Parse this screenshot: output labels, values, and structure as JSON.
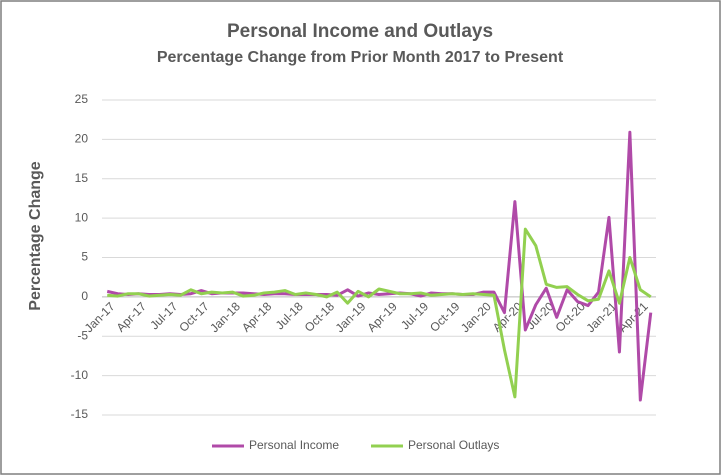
{
  "chart_data": {
    "type": "line",
    "title": "Personal Income and Outlays",
    "subtitle": "Percentage Change from Prior Month 2017 to Present",
    "y_label": "Percentage Change",
    "categories": [
      "Jan-17",
      null,
      null,
      "Apr-17",
      null,
      null,
      "Jul-17",
      null,
      null,
      "Oct-17",
      null,
      null,
      "Jan-18",
      null,
      null,
      "Apr-18",
      null,
      null,
      "Jul-18",
      null,
      null,
      "Oct-18",
      null,
      null,
      "Jan-19",
      null,
      null,
      "Apr-19",
      null,
      null,
      "Jul-19",
      null,
      null,
      "Oct-19",
      null,
      null,
      "Jan-20",
      null,
      null,
      "Apr-20",
      null,
      null,
      "Jul-20",
      null,
      null,
      "Oct-20",
      null,
      null,
      "Jan-21",
      null,
      null,
      "Apr-21",
      null
    ],
    "series": [
      {
        "name": "Personal Income",
        "color": "#b04aa8",
        "values": [
          0.7,
          0.4,
          0.3,
          0.4,
          0.3,
          0.3,
          0.4,
          0.3,
          0.4,
          0.8,
          0.4,
          0.5,
          0.5,
          0.5,
          0.4,
          0.3,
          0.4,
          0.4,
          0.3,
          0.3,
          0.3,
          0.3,
          0.2,
          0.9,
          0.1,
          0.5,
          0.3,
          0.4,
          0.5,
          0.4,
          0.1,
          0.5,
          0.4,
          0.4,
          0.3,
          0.3,
          0.6,
          0.6,
          -2.0,
          12.1,
          -4.2,
          -1.0,
          1.1,
          -2.6,
          0.9,
          -0.6,
          -1.1,
          0.6,
          10.1,
          -7.0,
          20.9,
          -13.1,
          -2.0
        ]
      },
      {
        "name": "Personal Outlays",
        "color": "#92d050",
        "values": [
          0.2,
          0.1,
          0.4,
          0.4,
          0.1,
          0.2,
          0.3,
          0.2,
          0.9,
          0.4,
          0.6,
          0.5,
          0.6,
          0.1,
          0.2,
          0.5,
          0.6,
          0.8,
          0.3,
          0.5,
          0.3,
          0.0,
          0.6,
          -0.8,
          0.7,
          0.0,
          1.0,
          0.7,
          0.4,
          0.4,
          0.5,
          0.2,
          0.3,
          0.4,
          0.3,
          0.4,
          0.3,
          0.2,
          -6.7,
          -12.7,
          8.6,
          6.5,
          1.6,
          1.2,
          1.3,
          0.3,
          -0.5,
          -0.3,
          3.3,
          -0.8,
          5.0,
          0.9,
          0.0
        ]
      }
    ],
    "ylim": [
      -15,
      25
    ],
    "yticks": [
      -15,
      -10,
      -5,
      0,
      5,
      10,
      15,
      20,
      25
    ],
    "grid": true,
    "legend": "bottom"
  }
}
